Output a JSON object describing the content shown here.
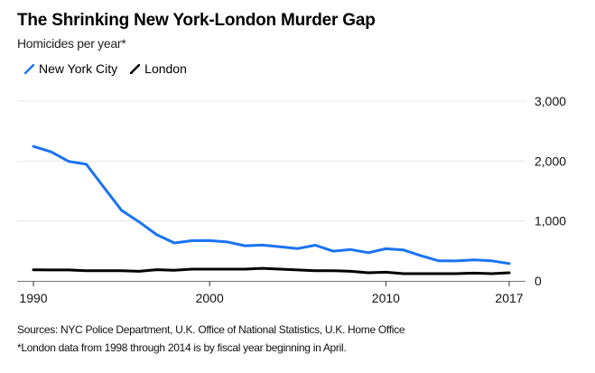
{
  "chart_data": {
    "type": "line",
    "title": "The Shrinking New York-London Murder Gap",
    "subtitle": "Homicides per year*",
    "xlabel": "",
    "ylabel": "",
    "xlim": [
      1990,
      2017
    ],
    "ylim": [
      0,
      3000
    ],
    "grid": true,
    "legend_position": "top-left",
    "x_ticks": [
      1990,
      2000,
      2010,
      2017
    ],
    "x_tick_labels": [
      "1990",
      "2000",
      "2010",
      "2017"
    ],
    "y_ticks": [
      0,
      1000,
      2000,
      3000
    ],
    "y_tick_labels": [
      "0",
      "1,000",
      "2,000",
      "3,000"
    ],
    "x": [
      1990,
      1991,
      1992,
      1993,
      1994,
      1995,
      1996,
      1997,
      1998,
      1999,
      2000,
      2001,
      2002,
      2003,
      2004,
      2005,
      2006,
      2007,
      2008,
      2009,
      2010,
      2011,
      2012,
      2013,
      2014,
      2015,
      2016,
      2017
    ],
    "series": [
      {
        "name": "New York City",
        "color": "#1a73f2",
        "values": [
          2245,
          2154,
          1995,
          1946,
          1561,
          1177,
          984,
          770,
          633,
          671,
          673,
          649,
          587,
          597,
          570,
          539,
          596,
          496,
          523,
          471,
          536,
          515,
          419,
          335,
          333,
          352,
          335,
          290
        ]
      },
      {
        "name": "London",
        "color": "#000000",
        "values": [
          184,
          182,
          182,
          171,
          171,
          171,
          160,
          187,
          176,
          196,
          196,
          196,
          196,
          210,
          196,
          183,
          170,
          170,
          160,
          135,
          145,
          120,
          120,
          120,
          120,
          130,
          120,
          135
        ]
      }
    ]
  },
  "footer": {
    "sources": "Sources: NYC Police Department, U.K. Office of National Statistics, U.K. Home Office",
    "note": "*London data from 1998 through 2014 is by fiscal year beginning in April."
  }
}
